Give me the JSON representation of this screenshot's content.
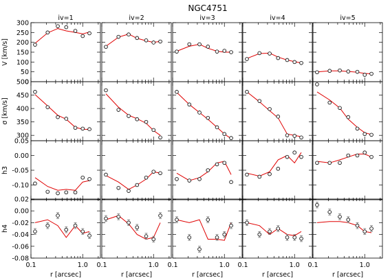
{
  "chart_data": {
    "type": "scatter",
    "title": "NGC4751",
    "xlabel": "r [arcsec]",
    "x_scale": "log",
    "xlim": [
      0.1,
      2.2
    ],
    "x_ticks": [
      0.1,
      1.0
    ],
    "x_tick_labels": [
      "0.1",
      "1.0"
    ],
    "columns": [
      "iv=1",
      "iv=2",
      "iv=3",
      "iv=4",
      "iv=5"
    ],
    "rows": [
      {
        "ylabel": "V [km/s]",
        "ylim": [
          0,
          300
        ],
        "yticks": [
          0,
          50,
          100,
          150,
          200,
          250,
          300
        ],
        "ytick_labels": [
          "0",
          "50",
          "100",
          "150",
          "200",
          "250",
          "300"
        ]
      },
      {
        "ylabel": "σ [km/s]",
        "ylim": [
          280,
          500
        ],
        "yticks": [
          300,
          350,
          400,
          450,
          500
        ],
        "ytick_labels": [
          "300",
          "350",
          "400",
          "450",
          "500"
        ]
      },
      {
        "ylabel": "h3",
        "ylim": [
          -0.15,
          0.05
        ],
        "yticks": [
          -0.15,
          -0.1,
          -0.05,
          0.0,
          0.05
        ],
        "ytick_labels": [
          "",
          "-0.10",
          "-0.05",
          "0.00",
          "0.05"
        ]
      },
      {
        "ylabel": "h4",
        "ylim": [
          -0.08,
          0.02
        ],
        "yticks": [
          -0.08,
          -0.06,
          -0.04,
          -0.02,
          0.0,
          0.02
        ],
        "ytick_labels": [
          "-0.08",
          "-0.06",
          "-0.04",
          "-0.02",
          "0.00",
          "0.02"
        ]
      }
    ],
    "panels": [
      [
        {
          "x": [
            0.12,
            0.21,
            0.33,
            0.48,
            0.72,
            1.0,
            1.35
          ],
          "y": [
            188,
            250,
            282,
            277,
            258,
            232,
            246
          ],
          "err": [
            5,
            5,
            5,
            5,
            5,
            5,
            5
          ],
          "model_x": [
            0.12,
            0.21,
            0.33,
            0.48,
            0.72,
            1.0,
            1.35
          ],
          "model_y": [
            195,
            248,
            270,
            258,
            250,
            243,
            252
          ]
        },
        {
          "x": [
            0.12,
            0.21,
            0.33,
            0.48,
            0.72,
            1.0,
            1.35
          ],
          "y": [
            177,
            228,
            240,
            222,
            210,
            199,
            204
          ],
          "err": [
            5,
            5,
            5,
            5,
            5,
            5,
            5
          ],
          "model_x": [
            0.12,
            0.21,
            0.33,
            0.48,
            0.72,
            1.0,
            1.35
          ],
          "model_y": [
            180,
            226,
            242,
            220,
            208,
            200,
            205
          ]
        },
        {
          "x": [
            0.12,
            0.21,
            0.33,
            0.48,
            0.72,
            1.0,
            1.35
          ],
          "y": [
            153,
            190,
            190,
            178,
            153,
            157,
            150
          ],
          "err": [
            5,
            5,
            5,
            5,
            5,
            5,
            5
          ],
          "model_x": [
            0.12,
            0.21,
            0.33,
            0.48,
            0.72,
            1.0,
            1.35
          ],
          "model_y": [
            155,
            180,
            190,
            170,
            155,
            150,
            150
          ]
        },
        {
          "x": [
            0.12,
            0.21,
            0.33,
            0.48,
            0.72,
            1.0,
            1.35
          ],
          "y": [
            115,
            145,
            143,
            120,
            110,
            100,
            95
          ],
          "err": [
            5,
            5,
            5,
            5,
            5,
            5,
            5
          ],
          "model_x": [
            0.12,
            0.21,
            0.33,
            0.48,
            0.72,
            1.0,
            1.35
          ],
          "model_y": [
            118,
            143,
            145,
            125,
            110,
            102,
            95
          ]
        },
        {
          "x": [
            0.12,
            0.21,
            0.33,
            0.48,
            0.72,
            1.0,
            1.35
          ],
          "y": [
            48,
            55,
            57,
            52,
            50,
            35,
            40
          ],
          "err": [
            5,
            5,
            5,
            5,
            5,
            5,
            5
          ],
          "model_x": [
            0.12,
            0.21,
            0.33,
            0.48,
            0.72,
            1.0,
            1.35
          ],
          "model_y": [
            50,
            55,
            55,
            52,
            48,
            42,
            40
          ]
        }
      ],
      [
        {
          "x": [
            0.12,
            0.21,
            0.33,
            0.48,
            0.72,
            1.0,
            1.35
          ],
          "y": [
            462,
            405,
            368,
            362,
            328,
            325,
            323
          ],
          "err": [
            3,
            3,
            3,
            3,
            3,
            3,
            3
          ],
          "model_x": [
            0.12,
            0.21,
            0.33,
            0.48,
            0.72,
            1.0,
            1.35
          ],
          "model_y": [
            452,
            410,
            375,
            360,
            330,
            323,
            322
          ]
        },
        {
          "x": [
            0.12,
            0.21,
            0.33,
            0.48,
            0.72,
            1.0,
            1.35
          ],
          "y": [
            468,
            395,
            372,
            360,
            350,
            320,
            292
          ],
          "err": [
            3,
            3,
            3,
            3,
            3,
            3,
            3
          ],
          "model_x": [
            0.12,
            0.21,
            0.33,
            0.48,
            0.72,
            1.0,
            1.35
          ],
          "model_y": [
            455,
            405,
            375,
            362,
            345,
            318,
            300
          ]
        },
        {
          "x": [
            0.12,
            0.21,
            0.33,
            0.48,
            0.72,
            1.0,
            1.35
          ],
          "y": [
            462,
            415,
            385,
            365,
            330,
            305,
            290
          ],
          "err": [
            3,
            3,
            3,
            3,
            3,
            3,
            3
          ],
          "model_x": [
            0.12,
            0.21,
            0.33,
            0.48,
            0.72,
            1.0,
            1.35
          ],
          "model_y": [
            460,
            415,
            385,
            360,
            330,
            305,
            288
          ]
        },
        {
          "x": [
            0.12,
            0.21,
            0.33,
            0.48,
            0.72,
            1.0,
            1.35
          ],
          "y": [
            462,
            428,
            398,
            370,
            300,
            298,
            292
          ],
          "err": [
            3,
            3,
            3,
            3,
            3,
            3,
            3
          ],
          "model_x": [
            0.12,
            0.21,
            0.33,
            0.48,
            0.72,
            1.0,
            1.35
          ],
          "model_y": [
            462,
            425,
            392,
            365,
            305,
            300,
            295
          ]
        },
        {
          "x": [
            0.12,
            0.21,
            0.33,
            0.48,
            0.72,
            1.0,
            1.35
          ],
          "y": [
            490,
            422,
            402,
            368,
            325,
            305,
            302
          ],
          "err": [
            3,
            3,
            3,
            3,
            3,
            3,
            3
          ],
          "model_x": [
            0.12,
            0.21,
            0.33,
            0.48,
            0.72,
            1.0,
            1.35
          ],
          "model_y": [
            462,
            432,
            402,
            360,
            330,
            310,
            303
          ]
        }
      ],
      [
        {
          "x": [
            0.12,
            0.21,
            0.33,
            0.48,
            0.72,
            1.0,
            1.35
          ],
          "y": [
            -0.095,
            -0.123,
            -0.128,
            -0.125,
            -0.125,
            -0.075,
            -0.08
          ],
          "err": [
            0.004,
            0.004,
            0.004,
            0.004,
            0.004,
            0.004,
            0.004
          ],
          "model_x": [
            0.12,
            0.21,
            0.33,
            0.48,
            0.72,
            1.0,
            1.35
          ],
          "model_y": [
            -0.075,
            -0.105,
            -0.118,
            -0.115,
            -0.118,
            -0.09,
            -0.085
          ]
        },
        {
          "x": [
            0.12,
            0.21,
            0.33,
            0.48,
            0.72,
            1.0,
            1.35
          ],
          "y": [
            -0.065,
            -0.11,
            -0.12,
            -0.1,
            -0.075,
            -0.055,
            -0.06
          ],
          "err": [
            0.004,
            0.004,
            0.004,
            0.004,
            0.004,
            0.004,
            0.004
          ],
          "model_x": [
            0.12,
            0.21,
            0.33,
            0.48,
            0.72,
            1.0,
            1.35
          ],
          "model_y": [
            -0.068,
            -0.09,
            -0.115,
            -0.1,
            -0.08,
            -0.055,
            -0.06
          ]
        },
        {
          "x": [
            0.12,
            0.21,
            0.33,
            0.48,
            0.72,
            1.0,
            1.35
          ],
          "y": [
            -0.08,
            -0.085,
            -0.08,
            -0.05,
            -0.03,
            -0.025,
            -0.09
          ],
          "err": [
            0.004,
            0.004,
            0.004,
            0.004,
            0.004,
            0.004,
            0.004
          ],
          "model_x": [
            0.12,
            0.21,
            0.33,
            0.48,
            0.72,
            1.0,
            1.35
          ],
          "model_y": [
            -0.06,
            -0.085,
            -0.075,
            -0.055,
            -0.025,
            -0.02,
            -0.065
          ]
        },
        {
          "x": [
            0.12,
            0.21,
            0.33,
            0.48,
            0.72,
            1.0,
            1.35
          ],
          "y": [
            -0.065,
            -0.072,
            -0.063,
            -0.045,
            -0.005,
            0.01,
            -0.005
          ],
          "err": [
            0.004,
            0.004,
            0.004,
            0.004,
            0.004,
            0.004,
            0.004
          ],
          "model_x": [
            0.12,
            0.21,
            0.33,
            0.48,
            0.72,
            1.0,
            1.35
          ],
          "model_y": [
            -0.06,
            -0.07,
            -0.055,
            -0.015,
            0.0,
            -0.025,
            0.01
          ]
        },
        {
          "x": [
            0.12,
            0.21,
            0.33,
            0.48,
            0.72,
            1.0,
            1.35
          ],
          "y": [
            -0.025,
            -0.025,
            -0.025,
            0.0,
            0.0,
            0.01,
            -0.005
          ],
          "err": [
            0.004,
            0.004,
            0.004,
            0.004,
            0.004,
            0.004,
            0.004
          ],
          "model_x": [
            0.12,
            0.21,
            0.33,
            0.48,
            0.72,
            1.0,
            1.35
          ],
          "model_y": [
            -0.02,
            -0.025,
            -0.015,
            -0.005,
            0.005,
            0.005,
            -0.005
          ]
        }
      ],
      [
        {
          "x": [
            0.12,
            0.21,
            0.33,
            0.48,
            0.72,
            1.0,
            1.35
          ],
          "y": [
            -0.035,
            -0.025,
            -0.008,
            -0.032,
            -0.025,
            -0.035,
            -0.042
          ],
          "err": [
            0.005,
            0.005,
            0.005,
            0.005,
            0.005,
            0.005,
            0.005
          ],
          "model_x": [
            0.12,
            0.21,
            0.33,
            0.48,
            0.72,
            1.0,
            1.35
          ],
          "model_y": [
            -0.02,
            -0.015,
            -0.025,
            -0.045,
            -0.025,
            -0.038,
            -0.035
          ]
        },
        {
          "x": [
            0.12,
            0.21,
            0.33,
            0.48,
            0.72,
            1.0,
            1.35
          ],
          "y": [
            -0.013,
            -0.01,
            -0.02,
            -0.028,
            -0.043,
            -0.048,
            -0.008
          ],
          "err": [
            0.005,
            0.005,
            0.005,
            0.005,
            0.005,
            0.005,
            0.005
          ],
          "model_x": [
            0.12,
            0.21,
            0.33,
            0.48,
            0.72,
            1.0,
            1.35
          ],
          "model_y": [
            -0.015,
            -0.008,
            -0.022,
            -0.04,
            -0.048,
            -0.045,
            -0.02
          ]
        },
        {
          "x": [
            0.12,
            0.21,
            0.33,
            0.48,
            0.72,
            1.0,
            1.35
          ],
          "y": [
            -0.015,
            -0.045,
            -0.065,
            -0.015,
            -0.045,
            -0.04,
            -0.025
          ],
          "err": [
            0.005,
            0.005,
            0.005,
            0.005,
            0.005,
            0.005,
            0.005
          ],
          "model_x": [
            0.12,
            0.21,
            0.33,
            0.48,
            0.72,
            1.0,
            1.35
          ],
          "model_y": [
            -0.015,
            -0.02,
            -0.015,
            -0.048,
            -0.048,
            -0.05,
            -0.02
          ]
        },
        {
          "x": [
            0.12,
            0.21,
            0.33,
            0.48,
            0.72,
            1.0,
            1.35
          ],
          "y": [
            -0.02,
            -0.04,
            -0.035,
            -0.03,
            -0.045,
            -0.045,
            -0.047
          ],
          "err": [
            0.005,
            0.005,
            0.005,
            0.005,
            0.005,
            0.005,
            0.005
          ],
          "model_x": [
            0.12,
            0.21,
            0.33,
            0.48,
            0.72,
            1.0,
            1.35
          ],
          "model_y": [
            -0.02,
            -0.025,
            -0.04,
            -0.03,
            -0.04,
            -0.042,
            -0.035
          ]
        },
        {
          "x": [
            0.12,
            0.21,
            0.33,
            0.48,
            0.72,
            1.0,
            1.35
          ],
          "y": [
            0.01,
            -0.002,
            -0.01,
            -0.015,
            -0.025,
            -0.035,
            -0.03
          ],
          "err": [
            0.005,
            0.005,
            0.005,
            0.005,
            0.005,
            0.005,
            0.005
          ],
          "model_x": [
            0.12,
            0.21,
            0.33,
            0.48,
            0.72,
            1.0,
            1.35
          ],
          "model_y": [
            -0.02,
            -0.018,
            -0.018,
            -0.02,
            -0.025,
            -0.035,
            -0.037
          ]
        }
      ]
    ]
  }
}
